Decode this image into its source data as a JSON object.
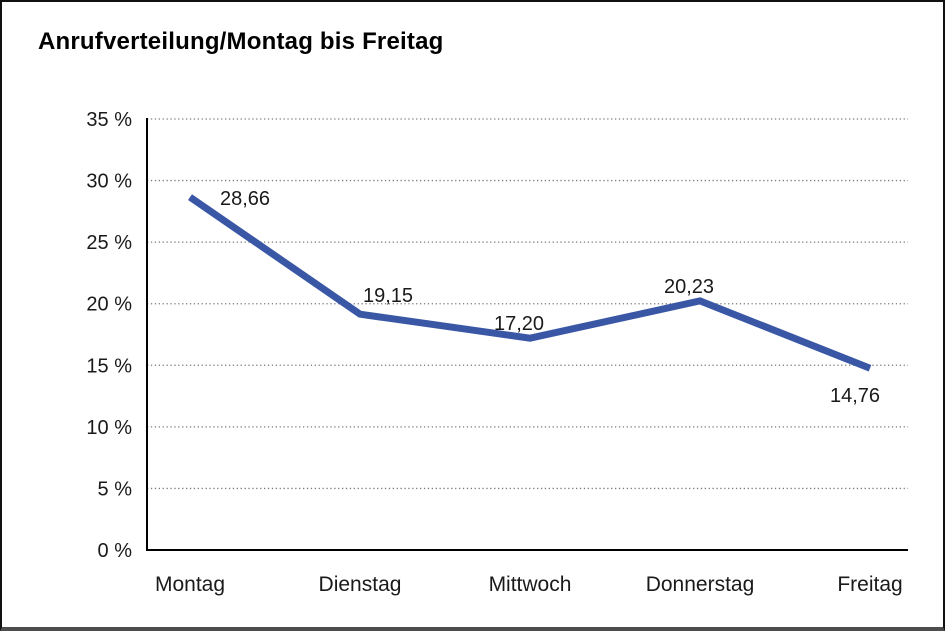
{
  "chart_data": {
    "type": "line",
    "title": "Anrufverteilung/Montag bis Freitag",
    "categories": [
      "Montag",
      "Dienstag",
      "Mittwoch",
      "Donnerstag",
      "Freitag"
    ],
    "values": [
      28.66,
      19.15,
      17.2,
      20.23,
      14.76
    ],
    "value_labels": [
      "28,66",
      "19,15",
      "17,20",
      "20,23",
      "14,76"
    ],
    "y_tick_values": [
      0,
      5,
      10,
      15,
      20,
      25,
      30,
      35
    ],
    "y_tick_labels": [
      "0 %",
      "5 %",
      "10 %",
      "15 %",
      "20 %",
      "25 %",
      "30 %",
      "35 %"
    ],
    "ylim": [
      0,
      35
    ],
    "xlabel": "",
    "ylabel": "",
    "grid": "dotted horizontal",
    "legend": "none",
    "colors": {
      "line": "#3A57A6",
      "axis": "#000000",
      "gridline": "#7a7a7a",
      "text": "#1a1a1a",
      "frame_border": "#111111",
      "frame_bottom_border": "#4d4d4d",
      "background": "#ffffff"
    }
  }
}
